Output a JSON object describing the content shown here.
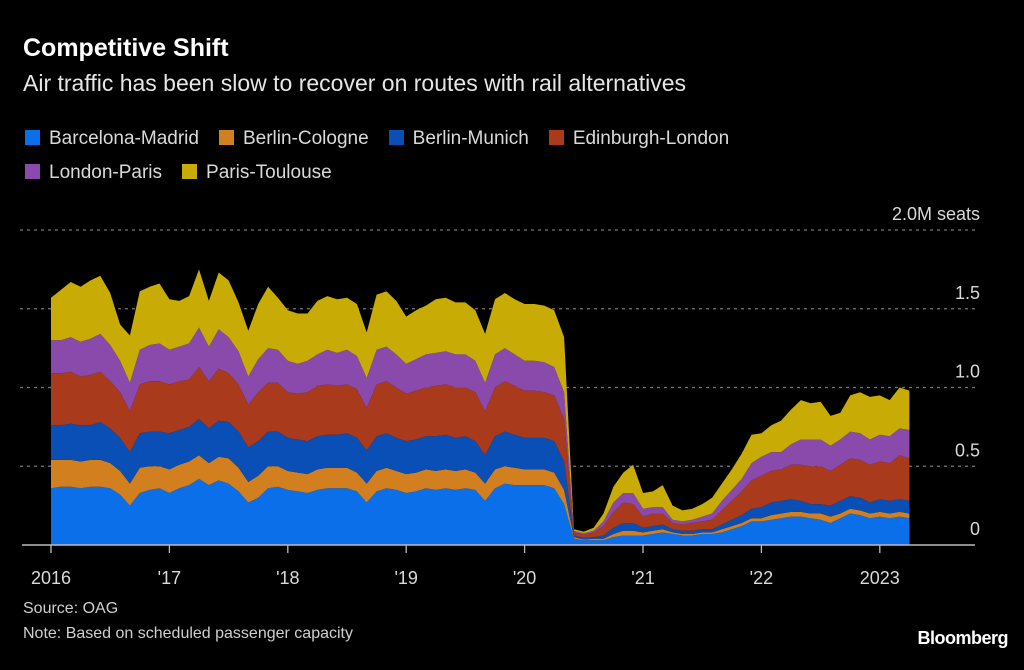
{
  "header": {
    "title": "Competitive Shift",
    "subtitle": "Air traffic has been slow to recover on routes with rail alternatives"
  },
  "footer": {
    "source": "Source: OAG",
    "note": "Note: Based on scheduled passenger capacity",
    "brand": "Bloomberg"
  },
  "chart_data": {
    "type": "area",
    "stacked": true,
    "title": "Competitive Shift",
    "subtitle": "Air traffic has been slow to recover on routes with rail alternatives",
    "xlabel": "",
    "ylabel": "M seats",
    "x_start": "2016-01",
    "x_end": "2023-04",
    "x_frequency": "monthly",
    "x_ticks": [
      {
        "year": 2016,
        "label": "2016"
      },
      {
        "year": 2017,
        "label": "'17"
      },
      {
        "year": 2018,
        "label": "'18"
      },
      {
        "year": 2019,
        "label": "'19"
      },
      {
        "year": 2020,
        "label": "'20"
      },
      {
        "year": 2021,
        "label": "'21"
      },
      {
        "year": 2022,
        "label": "'22"
      },
      {
        "year": 2023,
        "label": "2023"
      }
    ],
    "y_ticks": [
      {
        "value": 0,
        "label": "0"
      },
      {
        "value": 0.5,
        "label": "0.5"
      },
      {
        "value": 1.0,
        "label": "1.0"
      },
      {
        "value": 1.5,
        "label": "1.5"
      },
      {
        "value": 2.0,
        "label": "2.0M seats"
      }
    ],
    "ylim": [
      0,
      2.0
    ],
    "grid": true,
    "legend_position": "top-left",
    "series": [
      {
        "name": "Barcelona-Madrid",
        "color": "#0a6fe8",
        "values": [
          0.36,
          0.37,
          0.37,
          0.36,
          0.37,
          0.37,
          0.36,
          0.32,
          0.25,
          0.33,
          0.35,
          0.36,
          0.33,
          0.36,
          0.38,
          0.42,
          0.38,
          0.41,
          0.39,
          0.34,
          0.27,
          0.3,
          0.36,
          0.37,
          0.35,
          0.34,
          0.33,
          0.35,
          0.36,
          0.36,
          0.36,
          0.34,
          0.27,
          0.34,
          0.36,
          0.35,
          0.33,
          0.34,
          0.36,
          0.35,
          0.36,
          0.35,
          0.36,
          0.35,
          0.28,
          0.36,
          0.39,
          0.38,
          0.38,
          0.38,
          0.38,
          0.36,
          0.26,
          0.04,
          0.03,
          0.03,
          0.03,
          0.05,
          0.06,
          0.06,
          0.06,
          0.07,
          0.08,
          0.07,
          0.06,
          0.06,
          0.07,
          0.07,
          0.08,
          0.1,
          0.12,
          0.15,
          0.15,
          0.16,
          0.17,
          0.18,
          0.18,
          0.17,
          0.16,
          0.14,
          0.17,
          0.2,
          0.19,
          0.17,
          0.18,
          0.17,
          0.18,
          0.17
        ]
      },
      {
        "name": "Berlin-Cologne",
        "color": "#d2801f",
        "values": [
          0.18,
          0.17,
          0.17,
          0.17,
          0.17,
          0.17,
          0.16,
          0.15,
          0.14,
          0.16,
          0.15,
          0.14,
          0.15,
          0.15,
          0.15,
          0.15,
          0.14,
          0.15,
          0.16,
          0.15,
          0.13,
          0.14,
          0.14,
          0.13,
          0.12,
          0.12,
          0.12,
          0.13,
          0.13,
          0.13,
          0.13,
          0.12,
          0.12,
          0.13,
          0.13,
          0.12,
          0.12,
          0.12,
          0.12,
          0.12,
          0.12,
          0.12,
          0.12,
          0.11,
          0.11,
          0.12,
          0.11,
          0.11,
          0.1,
          0.1,
          0.1,
          0.1,
          0.09,
          0.01,
          0.005,
          0.01,
          0.01,
          0.02,
          0.03,
          0.03,
          0.02,
          0.02,
          0.02,
          0.01,
          0.01,
          0.01,
          0.01,
          0.01,
          0.02,
          0.02,
          0.02,
          0.02,
          0.02,
          0.03,
          0.03,
          0.03,
          0.03,
          0.03,
          0.04,
          0.04,
          0.03,
          0.03,
          0.03,
          0.03,
          0.03,
          0.03,
          0.03,
          0.03
        ]
      },
      {
        "name": "Berlin-Munich",
        "color": "#0a4fb5",
        "values": [
          0.22,
          0.22,
          0.23,
          0.23,
          0.22,
          0.24,
          0.22,
          0.21,
          0.2,
          0.22,
          0.22,
          0.22,
          0.23,
          0.22,
          0.22,
          0.23,
          0.22,
          0.23,
          0.23,
          0.23,
          0.22,
          0.22,
          0.22,
          0.22,
          0.21,
          0.21,
          0.21,
          0.21,
          0.21,
          0.21,
          0.22,
          0.22,
          0.21,
          0.22,
          0.22,
          0.21,
          0.21,
          0.21,
          0.21,
          0.22,
          0.22,
          0.21,
          0.21,
          0.2,
          0.18,
          0.21,
          0.22,
          0.21,
          0.2,
          0.2,
          0.2,
          0.2,
          0.18,
          0.01,
          0.01,
          0.01,
          0.02,
          0.04,
          0.05,
          0.05,
          0.03,
          0.03,
          0.03,
          0.02,
          0.02,
          0.02,
          0.02,
          0.02,
          0.03,
          0.04,
          0.05,
          0.06,
          0.07,
          0.08,
          0.08,
          0.08,
          0.07,
          0.06,
          0.06,
          0.07,
          0.08,
          0.08,
          0.08,
          0.07,
          0.08,
          0.08,
          0.08,
          0.08
        ]
      },
      {
        "name": "Edinburgh-London",
        "color": "#a93a1b",
        "values": [
          0.33,
          0.33,
          0.33,
          0.31,
          0.32,
          0.32,
          0.3,
          0.29,
          0.26,
          0.31,
          0.32,
          0.32,
          0.31,
          0.31,
          0.3,
          0.33,
          0.3,
          0.33,
          0.31,
          0.3,
          0.27,
          0.31,
          0.31,
          0.31,
          0.29,
          0.29,
          0.31,
          0.32,
          0.32,
          0.31,
          0.31,
          0.31,
          0.27,
          0.33,
          0.33,
          0.32,
          0.3,
          0.31,
          0.31,
          0.32,
          0.32,
          0.32,
          0.31,
          0.31,
          0.28,
          0.31,
          0.32,
          0.31,
          0.3,
          0.3,
          0.29,
          0.29,
          0.27,
          0.02,
          0.02,
          0.03,
          0.06,
          0.1,
          0.13,
          0.12,
          0.07,
          0.08,
          0.07,
          0.04,
          0.04,
          0.05,
          0.05,
          0.06,
          0.09,
          0.12,
          0.15,
          0.18,
          0.2,
          0.2,
          0.2,
          0.22,
          0.23,
          0.24,
          0.24,
          0.22,
          0.23,
          0.24,
          0.24,
          0.24,
          0.24,
          0.24,
          0.28,
          0.27
        ]
      },
      {
        "name": "London-Paris",
        "color": "#8a4aab",
        "values": [
          0.21,
          0.21,
          0.22,
          0.22,
          0.23,
          0.24,
          0.23,
          0.2,
          0.18,
          0.22,
          0.23,
          0.24,
          0.22,
          0.22,
          0.23,
          0.25,
          0.22,
          0.25,
          0.23,
          0.21,
          0.18,
          0.21,
          0.22,
          0.21,
          0.2,
          0.19,
          0.2,
          0.2,
          0.22,
          0.21,
          0.22,
          0.21,
          0.19,
          0.22,
          0.22,
          0.21,
          0.19,
          0.2,
          0.21,
          0.21,
          0.21,
          0.21,
          0.21,
          0.2,
          0.18,
          0.21,
          0.21,
          0.2,
          0.19,
          0.19,
          0.19,
          0.18,
          0.17,
          0.01,
          0.01,
          0.01,
          0.03,
          0.06,
          0.06,
          0.07,
          0.05,
          0.04,
          0.04,
          0.02,
          0.02,
          0.02,
          0.03,
          0.04,
          0.06,
          0.07,
          0.08,
          0.11,
          0.12,
          0.12,
          0.11,
          0.13,
          0.16,
          0.17,
          0.17,
          0.16,
          0.16,
          0.17,
          0.17,
          0.16,
          0.17,
          0.17,
          0.17,
          0.18
        ]
      },
      {
        "name": "Paris-Toulouse",
        "color": "#c8ab05",
        "values": [
          0.27,
          0.32,
          0.35,
          0.35,
          0.37,
          0.37,
          0.33,
          0.23,
          0.3,
          0.37,
          0.37,
          0.38,
          0.32,
          0.29,
          0.3,
          0.37,
          0.29,
          0.36,
          0.36,
          0.31,
          0.29,
          0.35,
          0.39,
          0.33,
          0.32,
          0.32,
          0.3,
          0.34,
          0.34,
          0.34,
          0.33,
          0.33,
          0.29,
          0.35,
          0.35,
          0.34,
          0.3,
          0.31,
          0.31,
          0.34,
          0.34,
          0.33,
          0.33,
          0.32,
          0.31,
          0.35,
          0.35,
          0.35,
          0.36,
          0.36,
          0.36,
          0.36,
          0.35,
          0.01,
          0.01,
          0.02,
          0.05,
          0.1,
          0.13,
          0.18,
          0.1,
          0.1,
          0.14,
          0.09,
          0.07,
          0.07,
          0.08,
          0.1,
          0.11,
          0.13,
          0.16,
          0.18,
          0.15,
          0.17,
          0.2,
          0.22,
          0.25,
          0.23,
          0.24,
          0.19,
          0.17,
          0.23,
          0.26,
          0.27,
          0.25,
          0.23,
          0.26,
          0.25
        ]
      }
    ]
  }
}
